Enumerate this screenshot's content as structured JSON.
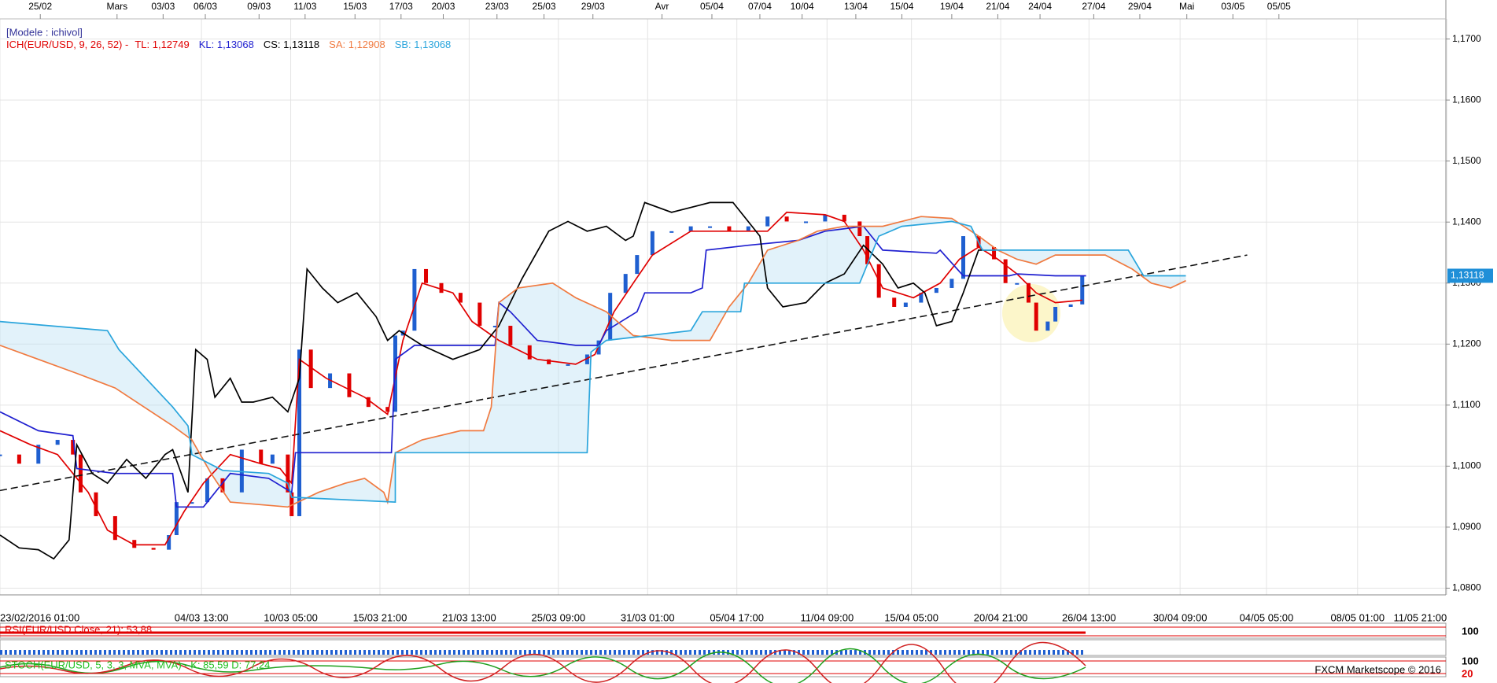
{
  "chart_data": {
    "type": "line",
    "model_label": "[Modele : ichivol]",
    "indicator_label": "ICH(EUR/USD, 9, 26, 52) -",
    "last_label": "1,13118",
    "xlim": [
      0,
      376.75
    ],
    "ylim": [
      1.0789,
      1.1733
    ],
    "grid": true,
    "xticks": [
      {
        "value": 0,
        "label": "23/02/2016 01:00"
      },
      {
        "value": 52.5,
        "label": "04/03 13:00"
      },
      {
        "value": 75.75,
        "label": "10/03 05:00"
      },
      {
        "value": 99,
        "label": "15/03 21:00"
      },
      {
        "value": 122.25,
        "label": "21/03 13:00"
      },
      {
        "value": 145.5,
        "label": "25/03 09:00"
      },
      {
        "value": 168.75,
        "label": "31/03 01:00"
      },
      {
        "value": 192,
        "label": "05/04 17:00"
      },
      {
        "value": 215.5,
        "label": "11/04 09:00"
      },
      {
        "value": 237.5,
        "label": "15/04 05:00"
      },
      {
        "value": 260.75,
        "label": "20/04 21:00"
      },
      {
        "value": 283.75,
        "label": "26/04 13:00"
      },
      {
        "value": 307.5,
        "label": "30/04 09:00"
      },
      {
        "value": 330,
        "label": "04/05 05:00"
      },
      {
        "value": 353.75,
        "label": "08/05 01:00"
      },
      {
        "value": 377,
        "label": "11/05 21:00"
      }
    ],
    "x2ticks": [
      {
        "value": 10.5,
        "label": "25/02"
      },
      {
        "value": 30.5,
        "label": "Mars"
      },
      {
        "value": 42.5,
        "label": "03/03"
      },
      {
        "value": 53.5,
        "label": "06/03"
      },
      {
        "value": 67.5,
        "label": "09/03"
      },
      {
        "value": 79.5,
        "label": "11/03"
      },
      {
        "value": 92.5,
        "label": "15/03"
      },
      {
        "value": 104.5,
        "label": "17/03"
      },
      {
        "value": 115.5,
        "label": "20/03"
      },
      {
        "value": 129.5,
        "label": "23/03"
      },
      {
        "value": 141.75,
        "label": "25/03"
      },
      {
        "value": 154.5,
        "label": "29/03"
      },
      {
        "value": 172.5,
        "label": "Avr"
      },
      {
        "value": 185.5,
        "label": "05/04"
      },
      {
        "value": 198,
        "label": "07/04"
      },
      {
        "value": 209,
        "label": "10/04"
      },
      {
        "value": 223,
        "label": "13/04"
      },
      {
        "value": 235,
        "label": "15/04"
      },
      {
        "value": 248,
        "label": "19/04"
      },
      {
        "value": 260,
        "label": "21/04"
      },
      {
        "value": 271,
        "label": "24/04"
      },
      {
        "value": 285,
        "label": "27/04"
      },
      {
        "value": 297,
        "label": "29/04"
      },
      {
        "value": 309.25,
        "label": "Mai"
      },
      {
        "value": 321.25,
        "label": "03/05"
      },
      {
        "value": 333.25,
        "label": "05/05"
      }
    ],
    "yticks": [
      {
        "value": 1.17,
        "label": "1,1700"
      },
      {
        "value": 1.16,
        "label": "1,1600"
      },
      {
        "value": 1.15,
        "label": "1,1500"
      },
      {
        "value": 1.14,
        "label": "1,1400"
      },
      {
        "value": 1.13,
        "label": "1,1300"
      },
      {
        "value": 1.12,
        "label": "1,1200"
      },
      {
        "value": 1.11,
        "label": "1,1100"
      },
      {
        "value": 1.1,
        "label": "1,1000"
      },
      {
        "value": 1.09,
        "label": "1,0900"
      },
      {
        "value": 1.08,
        "label": "1,0800"
      }
    ],
    "price": {
      "up_color": "#1f5fd0",
      "down_color": "#e00000",
      "x": [
        0,
        5,
        10,
        15,
        19,
        21,
        25,
        30,
        35,
        40,
        44,
        46,
        50,
        54,
        58,
        63,
        68,
        71,
        75,
        76,
        78,
        81,
        86,
        91,
        96,
        101,
        103,
        105,
        108,
        111,
        115,
        120,
        125,
        129,
        133,
        138,
        143,
        148,
        153,
        156,
        159,
        163,
        166,
        170,
        175,
        180,
        185,
        190,
        195,
        200,
        205,
        210,
        215,
        220,
        224,
        226,
        229,
        233,
        236,
        240,
        244,
        248,
        251,
        255,
        259,
        262,
        265,
        268,
        270,
        273,
        275,
        279,
        282
      ],
      "values": [
        1.1019,
        1.1004,
        1.1035,
        1.1043,
        1.1019,
        1.0957,
        1.0918,
        1.0879,
        1.0866,
        1.0863,
        1.0887,
        1.0941,
        1.0941,
        1.098,
        1.0957,
        1.1027,
        1.1004,
        1.1019,
        1.0957,
        1.0918,
        1.1191,
        1.1128,
        1.1152,
        1.1113,
        1.1097,
        1.1089,
        1.1214,
        1.1222,
        1.1323,
        1.13,
        1.1284,
        1.1268,
        1.123,
        1.123,
        1.1198,
        1.1175,
        1.1167,
        1.1167,
        1.1183,
        1.1206,
        1.1284,
        1.1315,
        1.1346,
        1.1385,
        1.1385,
        1.1393,
        1.1393,
        1.1385,
        1.1393,
        1.1409,
        1.1401,
        1.1401,
        1.1412,
        1.1401,
        1.1377,
        1.1331,
        1.1276,
        1.1261,
        1.1268,
        1.1284,
        1.1292,
        1.1307,
        1.1377,
        1.1359,
        1.1339,
        1.13,
        1.13,
        1.1268,
        1.1222,
        1.1237,
        1.1261,
        1.1265,
        1.1312
      ]
    },
    "series": [
      {
        "name": "TL: 1,12749",
        "color": "#e00000",
        "x": [
          0,
          8,
          15,
          23,
          28,
          35,
          43,
          48,
          53,
          60,
          68,
          73,
          76,
          78,
          85,
          95,
          101,
          105,
          110,
          118,
          123,
          130,
          140,
          150,
          155,
          160,
          165,
          170,
          180,
          190,
          200,
          205,
          215,
          220,
          225,
          230,
          238,
          245,
          250,
          255,
          260,
          265,
          270,
          275,
          282
        ],
        "values": [
          1.1058,
          1.1035,
          1.1019,
          1.0957,
          1.0895,
          1.0871,
          1.0871,
          1.0926,
          1.0972,
          1.1019,
          1.1004,
          1.0996,
          1.0972,
          1.1175,
          1.1144,
          1.1113,
          1.1085,
          1.1206,
          1.13,
          1.1284,
          1.1237,
          1.1206,
          1.1175,
          1.1167,
          1.1183,
          1.1253,
          1.13,
          1.1346,
          1.1385,
          1.1385,
          1.1385,
          1.1416,
          1.1412,
          1.1401,
          1.1354,
          1.1292,
          1.1276,
          1.13,
          1.1339,
          1.1359,
          1.1339,
          1.1315,
          1.1284,
          1.1268,
          1.1272
        ]
      },
      {
        "name": "KL: 1,13068",
        "color": "#2020d0",
        "x": [
          0,
          10,
          19,
          20,
          30,
          45,
          46,
          53,
          60,
          70,
          76,
          77,
          102,
          103,
          108,
          129,
          130,
          133,
          140,
          150,
          156,
          158,
          166,
          168,
          180,
          183,
          184,
          195,
          208,
          215,
          225,
          230,
          244,
          245,
          251,
          263,
          265,
          275,
          283
        ],
        "values": [
          1.1089,
          1.1058,
          1.105,
          1.0996,
          1.0988,
          1.0988,
          1.0933,
          1.0933,
          1.0988,
          1.098,
          1.0957,
          1.1022,
          1.1022,
          1.1175,
          1.1198,
          1.1198,
          1.1268,
          1.1253,
          1.1206,
          1.1198,
          1.1198,
          1.1222,
          1.1253,
          1.1284,
          1.1284,
          1.1292,
          1.1354,
          1.1362,
          1.137,
          1.1385,
          1.1393,
          1.1354,
          1.1349,
          1.1354,
          1.1312,
          1.1312,
          1.1315,
          1.1312,
          1.1312
        ]
      },
      {
        "name": "CS: 1,13118",
        "color": "#000000",
        "x": [
          0,
          5,
          10,
          14,
          18,
          20,
          24,
          28,
          33,
          38,
          43,
          45,
          49,
          51,
          54,
          56,
          60,
          63,
          66,
          71,
          75,
          78,
          80,
          84,
          88,
          93,
          98,
          101,
          104,
          110,
          118,
          125,
          130,
          136,
          143,
          148,
          153,
          158,
          163,
          165,
          168,
          175,
          185,
          191,
          198,
          200,
          204,
          210,
          215,
          220,
          225,
          230,
          234,
          238,
          241,
          244,
          248,
          251,
          255,
          259
        ],
        "values": [
          1.0887,
          1.0866,
          1.0863,
          1.0848,
          1.0879,
          1.1035,
          1.0988,
          1.0972,
          1.1011,
          1.098,
          1.1019,
          1.1027,
          1.0957,
          1.1191,
          1.1175,
          1.1113,
          1.1144,
          1.1105,
          1.1105,
          1.1113,
          1.1089,
          1.1144,
          1.1323,
          1.1292,
          1.1268,
          1.1284,
          1.1245,
          1.1206,
          1.1222,
          1.1198,
          1.1175,
          1.1191,
          1.123,
          1.1307,
          1.1385,
          1.1401,
          1.1385,
          1.1393,
          1.137,
          1.1377,
          1.1432,
          1.1416,
          1.1432,
          1.1432,
          1.1377,
          1.1292,
          1.1261,
          1.1268,
          1.13,
          1.1315,
          1.1362,
          1.1331,
          1.1292,
          1.13,
          1.1284,
          1.123,
          1.1237,
          1.1284,
          1.1354,
          1.1354
        ]
      },
      {
        "name": "SA: 1,12908",
        "color": "#f07a40",
        "x": [
          0,
          10,
          20,
          30,
          45,
          50,
          55,
          60,
          75,
          83,
          90,
          95,
          100,
          101,
          103,
          110,
          120,
          126,
          128,
          130,
          135,
          144,
          150,
          158,
          165,
          175,
          185,
          190,
          195,
          200,
          208,
          213,
          220,
          230,
          240,
          248,
          255,
          260,
          265,
          270,
          275,
          288,
          295,
          300,
          305,
          309
        ],
        "values": [
          1.1198,
          1.1175,
          1.1152,
          1.1128,
          1.1066,
          1.1043,
          1.0988,
          1.0941,
          1.0933,
          1.0957,
          1.0972,
          1.098,
          1.0957,
          1.0941,
          1.1022,
          1.1043,
          1.1058,
          1.1058,
          1.1097,
          1.1268,
          1.1292,
          1.13,
          1.1276,
          1.1253,
          1.1214,
          1.1206,
          1.1206,
          1.1261,
          1.13,
          1.1354,
          1.137,
          1.1385,
          1.1393,
          1.1393,
          1.1409,
          1.1406,
          1.1377,
          1.1354,
          1.1339,
          1.1331,
          1.1346,
          1.1346,
          1.1323,
          1.13,
          1.1292,
          1.1304
        ]
      },
      {
        "name": "SB: 1,13068",
        "color": "#2aa5dc",
        "x": [
          0,
          28,
          31,
          45,
          49,
          50,
          58,
          70,
          75,
          76,
          103,
          103,
          153,
          154,
          158,
          180,
          183,
          193,
          194,
          224,
          225,
          229,
          235,
          248,
          253,
          256,
          294,
          298,
          309
        ],
        "values": [
          1.1237,
          1.1222,
          1.1191,
          1.1097,
          1.1066,
          1.1019,
          1.0993,
          1.0988,
          1.0972,
          1.0949,
          1.0941,
          1.1022,
          1.1022,
          1.1187,
          1.1206,
          1.1222,
          1.1253,
          1.1253,
          1.13,
          1.13,
          1.1315,
          1.1377,
          1.1393,
          1.1401,
          1.1393,
          1.1354,
          1.1354,
          1.1312,
          1.1312
        ]
      }
    ],
    "trendline": {
      "x": [
        0,
        325
      ],
      "values": [
        1.096,
        1.1346
      ]
    },
    "rsi_label": "RSI(EUR/USD.Close, 21): 53,88",
    "rsi_scale": "100",
    "stoch_label": "STOCH(EUR/USD, 5, 3, 3, MVA, MVA) - K: 85,59   D: 77,24",
    "stoch_scale": [
      "100",
      "20"
    ],
    "footer": "FXCM Marketscope © 2016"
  }
}
